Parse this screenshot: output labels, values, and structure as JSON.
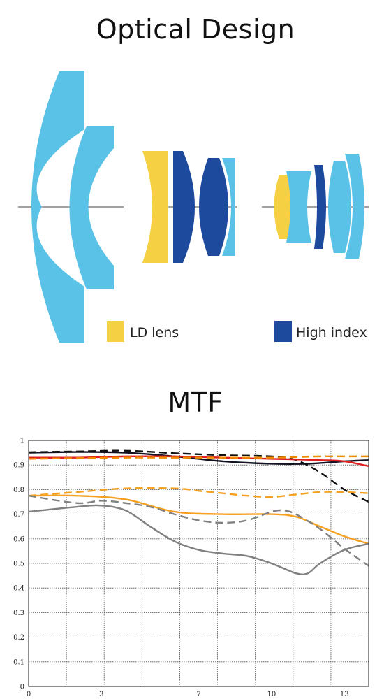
{
  "titles": {
    "top": "Optical Design",
    "bottom": "MTF"
  },
  "legend": {
    "ld": {
      "label": "LD lens",
      "color": "#F5D042"
    },
    "high_index": {
      "label": "High index",
      "color": "#1E4A9E"
    }
  },
  "colors": {
    "standard_element": "#5BC2E7",
    "ld": "#F5D042",
    "high_index": "#1E4A9E",
    "axis": "#444444"
  },
  "chart_data": {
    "type": "line",
    "xlim": [
      0,
      14
    ],
    "ylim": [
      0,
      1
    ],
    "xticks": [
      "0",
      "3",
      "7",
      "10",
      "13"
    ],
    "yticks": [
      "0",
      "0.1",
      "0.2",
      "0.3",
      "0.4",
      "0.5",
      "0.6",
      "0.7",
      "0.8",
      "0.9",
      "1"
    ],
    "grid": true,
    "series": [
      {
        "color": "#111122",
        "style": "solid",
        "x": [
          0,
          2,
          4,
          6,
          8,
          10,
          11.5,
          13,
          14
        ],
        "y": [
          0.95,
          0.953,
          0.95,
          0.935,
          0.915,
          0.905,
          0.905,
          0.915,
          0.92
        ]
      },
      {
        "color": "#111111",
        "style": "dashed",
        "x": [
          0,
          2,
          4,
          6,
          8,
          10,
          11,
          12,
          13,
          14
        ],
        "y": [
          0.952,
          0.955,
          0.958,
          0.948,
          0.94,
          0.935,
          0.92,
          0.87,
          0.8,
          0.75
        ]
      },
      {
        "color": "#E02020",
        "style": "solid",
        "x": [
          0,
          2,
          4,
          6,
          8,
          10,
          12,
          13,
          14
        ],
        "y": [
          0.93,
          0.93,
          0.935,
          0.935,
          0.93,
          0.925,
          0.92,
          0.915,
          0.895
        ]
      },
      {
        "color": "#F08A00",
        "style": "dashed",
        "x": [
          0,
          2,
          4,
          6,
          8,
          10,
          11,
          12,
          13,
          14
        ],
        "y": [
          0.925,
          0.928,
          0.93,
          0.93,
          0.93,
          0.93,
          0.932,
          0.935,
          0.935,
          0.935
        ]
      },
      {
        "color": "#F5A020",
        "style": "solid",
        "x": [
          0,
          2,
          4,
          6,
          8,
          10,
          11,
          12,
          13,
          14
        ],
        "y": [
          0.775,
          0.775,
          0.76,
          0.71,
          0.7,
          0.7,
          0.69,
          0.65,
          0.61,
          0.58
        ]
      },
      {
        "color": "#F5A020",
        "style": "dashed",
        "x": [
          0,
          2,
          4,
          6,
          7,
          8,
          9,
          10,
          11,
          12,
          13,
          14
        ],
        "y": [
          0.775,
          0.79,
          0.805,
          0.805,
          0.795,
          0.785,
          0.775,
          0.77,
          0.78,
          0.79,
          0.79,
          0.785
        ]
      },
      {
        "color": "#808080",
        "style": "solid",
        "x": [
          0,
          2,
          3,
          4,
          5,
          6,
          7,
          8,
          9,
          10,
          11,
          11.5,
          12,
          13,
          14
        ],
        "y": [
          0.71,
          0.73,
          0.735,
          0.715,
          0.65,
          0.59,
          0.555,
          0.54,
          0.53,
          0.5,
          0.46,
          0.46,
          0.5,
          0.555,
          0.58
        ]
      },
      {
        "color": "#808080",
        "style": "dashed",
        "x": [
          0,
          2,
          3,
          4,
          5,
          6,
          7,
          8,
          9,
          10,
          10.5,
          11,
          12,
          13,
          14
        ],
        "y": [
          0.775,
          0.745,
          0.755,
          0.745,
          0.73,
          0.7,
          0.675,
          0.665,
          0.675,
          0.71,
          0.715,
          0.7,
          0.64,
          0.56,
          0.49
        ]
      }
    ]
  }
}
